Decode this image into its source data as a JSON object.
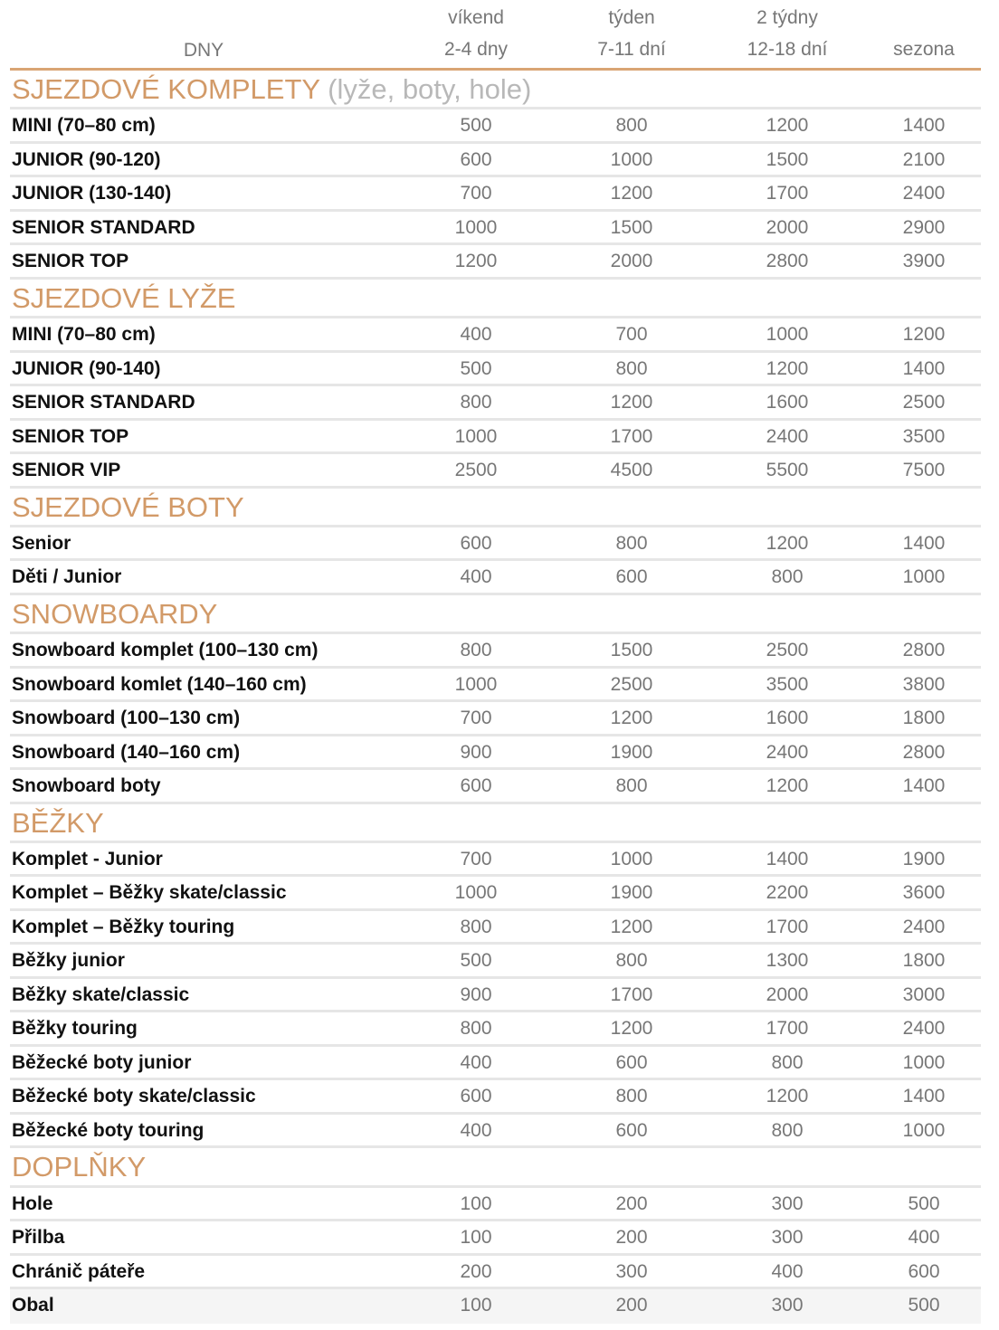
{
  "header": {
    "dny_label": "DNY",
    "columns": [
      {
        "top": "víkend",
        "bottom": "2-4 dny"
      },
      {
        "top": "týden",
        "bottom": "7-11 dní"
      },
      {
        "top": "2 týdny",
        "bottom": "12-18 dní"
      },
      {
        "top": "",
        "bottom": "sezona"
      }
    ]
  },
  "colors": {
    "accent": "#d29a68",
    "header_line": "#d9a574",
    "subtitle": "#b8b8b8",
    "values": "#777777"
  },
  "sections": [
    {
      "title": "SJEZDOVÉ KOMPLETY",
      "subtitle": "(lyže, boty, hole)",
      "rows": [
        {
          "name": "MINI (70–80 cm)",
          "values": [
            "500",
            "800",
            "1200",
            "1400"
          ]
        },
        {
          "name": "JUNIOR (90-120)",
          "values": [
            "600",
            "1000",
            "1500",
            "2100"
          ]
        },
        {
          "name": "JUNIOR (130-140)",
          "values": [
            "700",
            "1200",
            "1700",
            "2400"
          ]
        },
        {
          "name": "SENIOR STANDARD",
          "values": [
            "1000",
            "1500",
            "2000",
            "2900"
          ]
        },
        {
          "name": "SENIOR TOP",
          "values": [
            "1200",
            "2000",
            "2800",
            "3900"
          ]
        }
      ]
    },
    {
      "title": "SJEZDOVÉ LYŽE",
      "subtitle": "",
      "rows": [
        {
          "name": "MINI (70–80 cm)",
          "values": [
            "400",
            "700",
            "1000",
            "1200"
          ]
        },
        {
          "name": "JUNIOR (90-140)",
          "values": [
            "500",
            "800",
            "1200",
            "1400"
          ]
        },
        {
          "name": "SENIOR STANDARD",
          "values": [
            "800",
            "1200",
            "1600",
            "2500"
          ]
        },
        {
          "name": "SENIOR TOP",
          "values": [
            "1000",
            "1700",
            "2400",
            "3500"
          ]
        },
        {
          "name": "SENIOR VIP",
          "values": [
            "2500",
            "4500",
            "5500",
            "7500"
          ]
        }
      ]
    },
    {
      "title": "SJEZDOVÉ BOTY",
      "subtitle": "",
      "rows": [
        {
          "name": "Senior",
          "values": [
            "600",
            "800",
            "1200",
            "1400"
          ]
        },
        {
          "name": "Děti / Junior",
          "values": [
            "400",
            "600",
            "800",
            "1000"
          ]
        }
      ]
    },
    {
      "title": "SNOWBOARDY",
      "subtitle": "",
      "rows": [
        {
          "name": "Snowboard komplet (100–130 cm)",
          "values": [
            "800",
            "1500",
            "2500",
            "2800"
          ]
        },
        {
          "name": "Snowboard komlet (140–160 cm)",
          "values": [
            "1000",
            "2500",
            "3500",
            "3800"
          ]
        },
        {
          "name": "Snowboard (100–130 cm)",
          "values": [
            "700",
            "1200",
            "1600",
            "1800"
          ]
        },
        {
          "name": "Snowboard (140–160 cm)",
          "values": [
            "900",
            "1900",
            "2400",
            "2800"
          ]
        },
        {
          "name": "Snowboard boty",
          "values": [
            "600",
            "800",
            "1200",
            "1400"
          ]
        }
      ]
    },
    {
      "title": "BĚŽKY",
      "subtitle": "",
      "rows": [
        {
          "name": "Komplet - Junior",
          "values": [
            "700",
            "1000",
            "1400",
            "1900"
          ]
        },
        {
          "name": "Komplet – Běžky skate/classic",
          "values": [
            "1000",
            "1900",
            "2200",
            "3600"
          ]
        },
        {
          "name": "Komplet – Běžky touring",
          "values": [
            "800",
            "1200",
            "1700",
            "2400"
          ]
        },
        {
          "name": "Běžky junior",
          "values": [
            "500",
            "800",
            "1300",
            "1800"
          ]
        },
        {
          "name": "Běžky skate/classic",
          "values": [
            "900",
            "1700",
            "2000",
            "3000"
          ]
        },
        {
          "name": "Běžky touring",
          "values": [
            "800",
            "1200",
            "1700",
            "2400"
          ]
        },
        {
          "name": "Běžecké boty junior",
          "values": [
            "400",
            "600",
            "800",
            "1000"
          ]
        },
        {
          "name": "Běžecké boty skate/classic",
          "values": [
            "600",
            "800",
            "1200",
            "1400"
          ]
        },
        {
          "name": "Běžecké boty touring",
          "values": [
            "400",
            "600",
            "800",
            "1000"
          ]
        }
      ]
    },
    {
      "title": "DOPLŇKY",
      "subtitle": "",
      "rows": [
        {
          "name": "Hole",
          "values": [
            "100",
            "200",
            "300",
            "500"
          ]
        },
        {
          "name": "Přilba",
          "values": [
            "100",
            "200",
            "300",
            "400"
          ]
        },
        {
          "name": "Chránič páteře",
          "values": [
            "200",
            "300",
            "400",
            "600"
          ]
        },
        {
          "name": "Obal",
          "values": [
            "100",
            "200",
            "300",
            "500"
          ]
        }
      ]
    }
  ]
}
